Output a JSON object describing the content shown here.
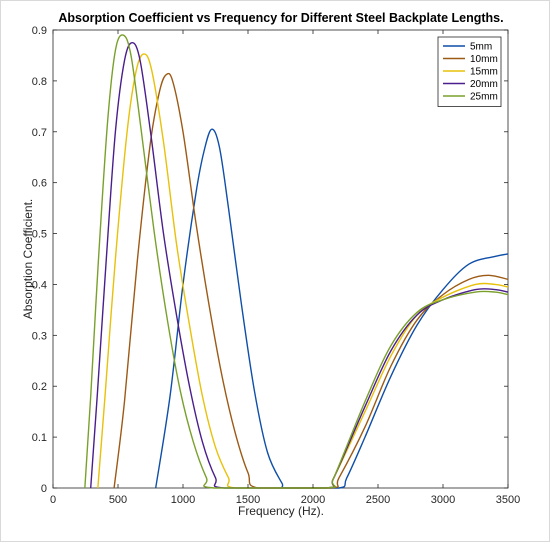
{
  "chart_data": {
    "type": "line",
    "title": "Absorption Coefficient vs Frequency for Different Steel Backplate Lengths.",
    "xlabel": "Frequency (Hz).",
    "ylabel": "Absorption Coefficient.",
    "xlim": [
      0,
      3500
    ],
    "ylim": [
      0,
      0.9
    ],
    "xticks": [
      0,
      500,
      1000,
      1500,
      2000,
      2500,
      3000,
      3500
    ],
    "yticks": [
      0,
      0.1,
      0.2,
      0.3,
      0.4,
      0.5,
      0.6,
      0.7,
      0.8,
      0.9
    ],
    "grid": false,
    "legend_position": "top-right",
    "series": [
      {
        "name": "5mm",
        "color": "#0f4fa8",
        "points": [
          [
            790,
            0
          ],
          [
            900,
            0.18
          ],
          [
            1000,
            0.4
          ],
          [
            1100,
            0.58
          ],
          [
            1160,
            0.66
          ],
          [
            1220,
            0.705
          ],
          [
            1280,
            0.67
          ],
          [
            1350,
            0.55
          ],
          [
            1450,
            0.36
          ],
          [
            1550,
            0.19
          ],
          [
            1650,
            0.07
          ],
          [
            1760,
            0.01
          ],
          [
            1800,
            0
          ],
          [
            2200,
            0
          ],
          [
            2260,
            0.02
          ],
          [
            2400,
            0.1
          ],
          [
            2600,
            0.22
          ],
          [
            2800,
            0.32
          ],
          [
            3000,
            0.39
          ],
          [
            3200,
            0.44
          ],
          [
            3400,
            0.455
          ],
          [
            3500,
            0.46
          ]
        ]
      },
      {
        "name": "10mm",
        "color": "#9c5a16",
        "points": [
          [
            470,
            0
          ],
          [
            550,
            0.17
          ],
          [
            650,
            0.45
          ],
          [
            750,
            0.68
          ],
          [
            820,
            0.78
          ],
          [
            870,
            0.812
          ],
          [
            920,
            0.8
          ],
          [
            1000,
            0.7
          ],
          [
            1100,
            0.52
          ],
          [
            1200,
            0.36
          ],
          [
            1300,
            0.22
          ],
          [
            1400,
            0.11
          ],
          [
            1500,
            0.03
          ],
          [
            1580,
            0
          ],
          [
            2140,
            0
          ],
          [
            2200,
            0.02
          ],
          [
            2400,
            0.12
          ],
          [
            2600,
            0.24
          ],
          [
            2800,
            0.33
          ],
          [
            3000,
            0.38
          ],
          [
            3200,
            0.41
          ],
          [
            3350,
            0.418
          ],
          [
            3500,
            0.41
          ]
        ]
      },
      {
        "name": "15mm",
        "color": "#e8c10a",
        "points": [
          [
            345,
            0
          ],
          [
            400,
            0.18
          ],
          [
            480,
            0.45
          ],
          [
            570,
            0.7
          ],
          [
            640,
            0.82
          ],
          [
            700,
            0.853
          ],
          [
            760,
            0.82
          ],
          [
            850,
            0.68
          ],
          [
            950,
            0.48
          ],
          [
            1050,
            0.32
          ],
          [
            1150,
            0.18
          ],
          [
            1250,
            0.08
          ],
          [
            1350,
            0.02
          ],
          [
            1410,
            0
          ],
          [
            2100,
            0
          ],
          [
            2160,
            0.02
          ],
          [
            2400,
            0.15
          ],
          [
            2600,
            0.26
          ],
          [
            2800,
            0.34
          ],
          [
            3000,
            0.375
          ],
          [
            3250,
            0.4
          ],
          [
            3400,
            0.4
          ],
          [
            3500,
            0.395
          ]
        ]
      },
      {
        "name": "20mm",
        "color": "#4a1e8c",
        "points": [
          [
            290,
            0
          ],
          [
            340,
            0.18
          ],
          [
            410,
            0.45
          ],
          [
            480,
            0.7
          ],
          [
            550,
            0.84
          ],
          [
            610,
            0.875
          ],
          [
            670,
            0.84
          ],
          [
            750,
            0.7
          ],
          [
            850,
            0.5
          ],
          [
            950,
            0.34
          ],
          [
            1050,
            0.2
          ],
          [
            1150,
            0.09
          ],
          [
            1250,
            0.02
          ],
          [
            1320,
            0
          ],
          [
            2100,
            0
          ],
          [
            2160,
            0.02
          ],
          [
            2400,
            0.16
          ],
          [
            2600,
            0.27
          ],
          [
            2800,
            0.34
          ],
          [
            3000,
            0.37
          ],
          [
            3250,
            0.39
          ],
          [
            3400,
            0.39
          ],
          [
            3500,
            0.385
          ]
        ]
      },
      {
        "name": "25mm",
        "color": "#7aa02c",
        "points": [
          [
            245,
            0
          ],
          [
            290,
            0.18
          ],
          [
            350,
            0.45
          ],
          [
            420,
            0.72
          ],
          [
            480,
            0.86
          ],
          [
            540,
            0.89
          ],
          [
            600,
            0.85
          ],
          [
            680,
            0.7
          ],
          [
            780,
            0.5
          ],
          [
            880,
            0.33
          ],
          [
            980,
            0.19
          ],
          [
            1080,
            0.09
          ],
          [
            1180,
            0.02
          ],
          [
            1240,
            0
          ],
          [
            2100,
            0
          ],
          [
            2160,
            0.02
          ],
          [
            2400,
            0.17
          ],
          [
            2600,
            0.28
          ],
          [
            2800,
            0.345
          ],
          [
            3000,
            0.37
          ],
          [
            3250,
            0.385
          ],
          [
            3400,
            0.385
          ],
          [
            3500,
            0.38
          ]
        ]
      }
    ]
  }
}
